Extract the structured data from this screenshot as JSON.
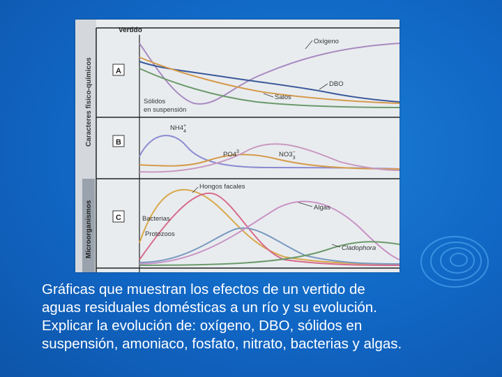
{
  "figure": {
    "vertido_label": "Vertido",
    "side_labels": {
      "upper": "Caracteres físico-químicos",
      "lower": "Microorganismos"
    },
    "panels": [
      {
        "id": "A",
        "labels": [
          "Oxígeno",
          "DBO",
          "Salos",
          "Sólidos",
          "en suspensión"
        ]
      },
      {
        "id": "B",
        "labels": [
          "NH4",
          "+",
          "4",
          "PO4",
          "3",
          "NO3",
          "−",
          "3"
        ]
      },
      {
        "id": "C",
        "labels": [
          "Hongos facales",
          "Algas",
          "Bacterias",
          "Protozoos",
          "Cladophora"
        ]
      }
    ]
  },
  "caption": [
    "Gráficas que muestran los efectos de un vertido de",
    "aguas residuales domésticas a un río y su evolución.",
    "Explicar la evolución de: oxígeno, DBO, sólidos en",
    "suspensión, amoniaco, fosfato, nitrato, bacterias y algas."
  ],
  "colors": {
    "background": "#1166c4",
    "oxigeno": "#a88ac0",
    "dbo": "#3b5a9a",
    "salts": "#d49a4a",
    "solidos": "#6a9a6a",
    "bacterias": "#d76a8a",
    "algas": "#c893c4",
    "cladophora": "#d8a84a"
  }
}
